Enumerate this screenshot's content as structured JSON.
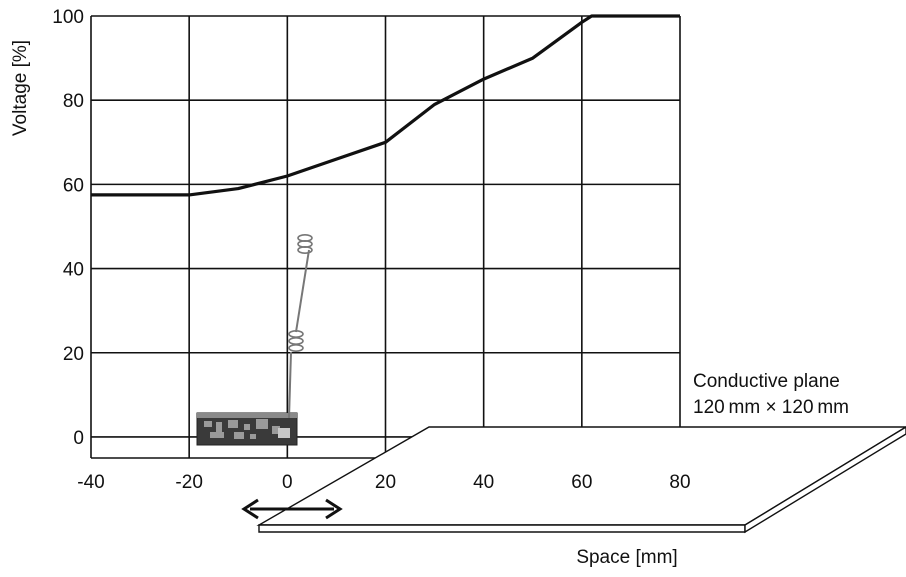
{
  "chart_data": {
    "type": "line",
    "title": "",
    "xlabel": "Space [mm]",
    "ylabel": "Voltage [%]",
    "xlim": [
      -40,
      80
    ],
    "ylim": [
      -5,
      100
    ],
    "xticks": [
      -40,
      -20,
      0,
      20,
      40,
      60,
      80
    ],
    "yticks": [
      0,
      20,
      40,
      60,
      80,
      100
    ],
    "xtick_labels": [
      "-40",
      "-20",
      "0",
      "20",
      "40",
      "60",
      "80"
    ],
    "ytick_labels": [
      "0",
      "20",
      "40",
      "60",
      "80",
      "100"
    ],
    "grid": true,
    "series": [
      {
        "x": [
          -40,
          -20,
          -10,
          0,
          10,
          20,
          30,
          40,
          50,
          60,
          62,
          80
        ],
        "y": [
          57.5,
          57.5,
          59,
          62,
          66,
          70,
          79,
          85,
          90,
          98.5,
          100,
          100
        ]
      }
    ],
    "annotations": {
      "plane_label_line1": "Conductive plane",
      "plane_label_line2": "120 mm × 120 mm"
    }
  }
}
